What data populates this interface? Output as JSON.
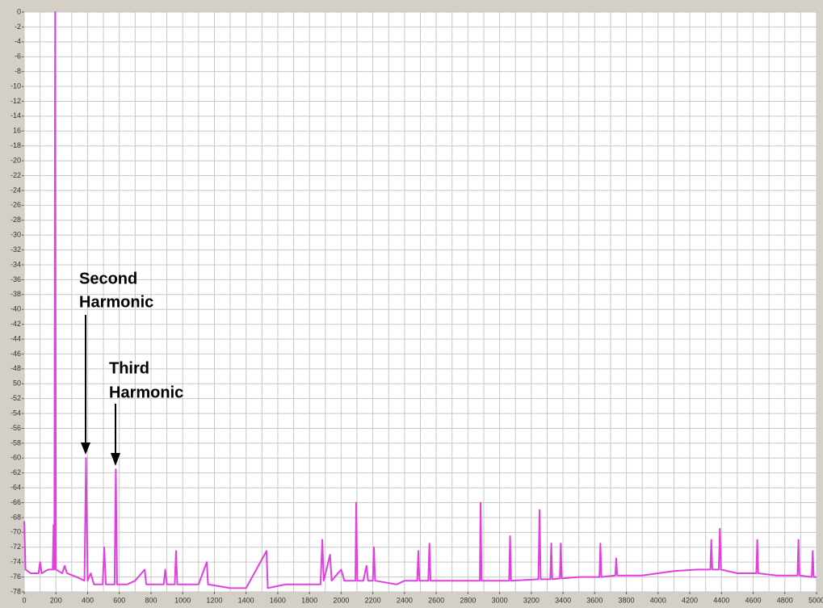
{
  "chart_data": {
    "type": "line",
    "color": "#e040e0",
    "grid": true,
    "xlim": [
      0,
      5000
    ],
    "ylim": [
      -78,
      0
    ],
    "xticks": [
      0,
      200,
      400,
      600,
      800,
      1000,
      1200,
      1400,
      1600,
      1800,
      2000,
      2200,
      2400,
      2600,
      2800,
      3000,
      3200,
      3400,
      3600,
      3800,
      4000,
      4200,
      4400,
      4600,
      4800,
      5000
    ],
    "yticks": [
      0,
      -2,
      -4,
      -6,
      -8,
      -10,
      -12,
      -14,
      {
        "value": -16,
        "label": "16"
      },
      -18,
      -20,
      -22,
      -24,
      -26,
      -28,
      -30,
      -32,
      -34,
      -36,
      -38,
      -40,
      -42,
      -44,
      -46,
      -48,
      {
        "value": -50,
        "label": "50"
      },
      -52,
      -54,
      -56,
      -58,
      -60,
      -62,
      -64,
      -66,
      -68,
      -70,
      -72,
      -74,
      -76,
      -78
    ],
    "annotations": [
      {
        "lines": [
          "Second",
          "Harmonic"
        ]
      },
      {
        "lines": [
          "Third",
          "Harmonic"
        ]
      }
    ],
    "x": [
      0,
      8,
      40,
      90,
      100,
      110,
      150,
      180,
      185,
      190,
      195,
      200,
      240,
      255,
      270,
      330,
      380,
      390,
      400,
      420,
      440,
      495,
      505,
      515,
      570,
      578,
      586,
      650,
      700,
      760,
      770,
      880,
      890,
      900,
      950,
      958,
      966,
      1100,
      1152,
      1160,
      1300,
      1400,
      1529,
      1537,
      1650,
      1760,
      1870,
      1881,
      1890,
      1930,
      1940,
      2000,
      2020,
      2090,
      2095,
      2102,
      2140,
      2160,
      2170,
      2200,
      2207,
      2214,
      2350,
      2400,
      2480,
      2487,
      2494,
      2550,
      2557,
      2564,
      2700,
      2800,
      2875,
      2880,
      2886,
      3000,
      3060,
      3066,
      3072,
      3245,
      3252,
      3259,
      3320,
      3326,
      3332,
      3380,
      3386,
      3392,
      3500,
      3630,
      3636,
      3642,
      3730,
      3736,
      3742,
      3900,
      4100,
      4250,
      4330,
      4336,
      4342,
      4383,
      4390,
      4397,
      4500,
      4620,
      4626,
      4632,
      4750,
      4880,
      4886,
      4892,
      4970,
      4976,
      4982,
      5000
    ],
    "values": [
      -68.5,
      -75,
      -75.5,
      -75.5,
      -74,
      -75.5,
      -75,
      -75,
      -69,
      -75,
      0,
      -75,
      -75.5,
      -74.5,
      -75.5,
      -76,
      -76.5,
      -60,
      -76.5,
      -75.5,
      -77,
      -77,
      -72,
      -77,
      -77,
      -61.5,
      -77,
      -77,
      -76.5,
      -75,
      -77,
      -77,
      -75,
      -77,
      -77,
      -72.5,
      -77,
      -77,
      -74,
      -77,
      -77.5,
      -77.5,
      -72.5,
      -77.5,
      -77,
      -77,
      -77,
      -71,
      -76.5,
      -73,
      -76.5,
      -75,
      -76.5,
      -76.5,
      -66,
      -76.5,
      -76.5,
      -74.5,
      -76.5,
      -76.5,
      -72,
      -76.5,
      -77,
      -76.5,
      -76.5,
      -72.5,
      -76.5,
      -76.5,
      -71.5,
      -76.5,
      -76.5,
      -76.5,
      -76.5,
      -66,
      -76.5,
      -76.5,
      -76.5,
      -70.5,
      -76.5,
      -76.3,
      -67,
      -76.3,
      -76.3,
      -71.5,
      -76.3,
      -76.2,
      -71.5,
      -76.2,
      -76,
      -76,
      -71.5,
      -76,
      -75.8,
      -73.5,
      -75.8,
      -75.8,
      -75.2,
      -75,
      -75,
      -71,
      -75,
      -75,
      -69.5,
      -75,
      -75.5,
      -75.5,
      -71,
      -75.5,
      -75.8,
      -75.8,
      -71,
      -75.8,
      -76,
      -72.5,
      -76,
      -76
    ]
  }
}
